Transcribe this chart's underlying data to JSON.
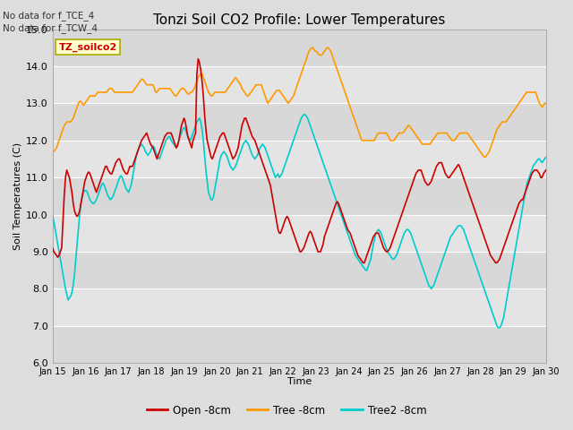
{
  "title": "Tonzi Soil CO2 Profile: Lower Temperatures",
  "ylabel": "Soil Temperatures (C)",
  "xlabel": "Time",
  "annotation1": "No data for f_TCE_4",
  "annotation2": "No data for f_TCW_4",
  "legend_label": "TZ_soilco2",
  "ylim": [
    6.0,
    15.0
  ],
  "yticks": [
    6.0,
    7.0,
    8.0,
    9.0,
    10.0,
    11.0,
    12.0,
    13.0,
    14.0,
    15.0
  ],
  "colors": {
    "open": "#cc0000",
    "tree": "#ff9900",
    "tree2": "#00cccc",
    "fig_bg": "#dddddd",
    "plot_bg_dark": "#d0d0d0",
    "plot_bg_light": "#e0e0e0"
  },
  "line_width": 1.2,
  "series_labels": [
    "Open -8cm",
    "Tree -8cm",
    "Tree2 -8cm"
  ],
  "xtick_labels": [
    "Jan 15",
    "Jan 16",
    "Jan 17",
    "Jan 18",
    "Jan 19",
    "Jan 20",
    "Jan 21",
    "Jan 22",
    "Jan 23",
    "Jan 24",
    "Jan 25",
    "Jan 26",
    "Jan 27",
    "Jan 28",
    "Jan 29",
    "Jan 30"
  ],
  "open_8cm": [
    9.1,
    9.0,
    8.95,
    8.9,
    8.85,
    8.9,
    9.0,
    9.1,
    9.8,
    10.5,
    11.0,
    11.2,
    11.1,
    11.0,
    10.8,
    10.6,
    10.3,
    10.1,
    10.0,
    9.95,
    10.0,
    10.1,
    10.3,
    10.5,
    10.7,
    10.9,
    11.0,
    11.1,
    11.15,
    11.1,
    11.0,
    10.9,
    10.8,
    10.7,
    10.6,
    10.7,
    10.8,
    10.9,
    11.0,
    11.1,
    11.2,
    11.3,
    11.3,
    11.2,
    11.15,
    11.1,
    11.1,
    11.2,
    11.3,
    11.4,
    11.45,
    11.5,
    11.5,
    11.4,
    11.3,
    11.2,
    11.15,
    11.1,
    11.1,
    11.2,
    11.3,
    11.3,
    11.3,
    11.4,
    11.5,
    11.6,
    11.7,
    11.8,
    11.9,
    12.0,
    12.05,
    12.1,
    12.15,
    12.2,
    12.1,
    12.0,
    11.9,
    11.85,
    11.8,
    11.7,
    11.6,
    11.5,
    11.6,
    11.7,
    11.8,
    11.9,
    12.0,
    12.1,
    12.15,
    12.2,
    12.2,
    12.2,
    12.2,
    12.1,
    12.0,
    11.9,
    11.8,
    11.85,
    12.0,
    12.2,
    12.4,
    12.5,
    12.6,
    12.5,
    12.3,
    12.1,
    12.0,
    11.9,
    11.8,
    12.0,
    12.1,
    12.2,
    13.8,
    14.2,
    14.1,
    13.9,
    13.6,
    13.2,
    12.7,
    12.3,
    12.0,
    11.85,
    11.7,
    11.55,
    11.5,
    11.6,
    11.7,
    11.8,
    11.9,
    12.0,
    12.1,
    12.15,
    12.2,
    12.2,
    12.1,
    12.0,
    11.9,
    11.8,
    11.7,
    11.6,
    11.5,
    11.55,
    11.6,
    11.7,
    11.8,
    12.0,
    12.2,
    12.4,
    12.5,
    12.6,
    12.6,
    12.5,
    12.4,
    12.3,
    12.2,
    12.1,
    12.05,
    12.0,
    11.9,
    11.8,
    11.7,
    11.6,
    11.5,
    11.4,
    11.3,
    11.2,
    11.1,
    11.0,
    10.9,
    10.8,
    10.6,
    10.4,
    10.2,
    10.0,
    9.8,
    9.6,
    9.5,
    9.5,
    9.6,
    9.7,
    9.8,
    9.9,
    9.95,
    9.9,
    9.8,
    9.7,
    9.6,
    9.5,
    9.4,
    9.3,
    9.2,
    9.1,
    9.0,
    9.0,
    9.05,
    9.1,
    9.2,
    9.3,
    9.4,
    9.5,
    9.55,
    9.5,
    9.4,
    9.3,
    9.2,
    9.1,
    9.0,
    9.0,
    9.0,
    9.1,
    9.2,
    9.4,
    9.5,
    9.6,
    9.7,
    9.8,
    9.9,
    10.0,
    10.1,
    10.2,
    10.3,
    10.35,
    10.3,
    10.2,
    10.1,
    10.0,
    9.9,
    9.8,
    9.7,
    9.6,
    9.55,
    9.5,
    9.4,
    9.3,
    9.2,
    9.1,
    9.0,
    8.9,
    8.85,
    8.8,
    8.75,
    8.7,
    8.7,
    8.8,
    8.9,
    9.0,
    9.1,
    9.2,
    9.3,
    9.4,
    9.45,
    9.5,
    9.5,
    9.5,
    9.4,
    9.3,
    9.2,
    9.1,
    9.05,
    9.0,
    9.0,
    9.05,
    9.1,
    9.2,
    9.3,
    9.4,
    9.5,
    9.6,
    9.7,
    9.8,
    9.9,
    10.0,
    10.1,
    10.2,
    10.3,
    10.4,
    10.5,
    10.6,
    10.7,
    10.8,
    10.9,
    11.0,
    11.1,
    11.15,
    11.2,
    11.2,
    11.2,
    11.1,
    11.0,
    10.9,
    10.85,
    10.8,
    10.8,
    10.85,
    10.9,
    11.0,
    11.1,
    11.2,
    11.3,
    11.35,
    11.4,
    11.4,
    11.4,
    11.3,
    11.2,
    11.1,
    11.05,
    11.0,
    11.0,
    11.05,
    11.1,
    11.15,
    11.2,
    11.25,
    11.3,
    11.35,
    11.3,
    11.2,
    11.1,
    11.0,
    10.9,
    10.8,
    10.7,
    10.6,
    10.5,
    10.4,
    10.3,
    10.2,
    10.1,
    10.0,
    9.9,
    9.8,
    9.7,
    9.6,
    9.5,
    9.4,
    9.3,
    9.2,
    9.1,
    9.0,
    8.9,
    8.85,
    8.8,
    8.75,
    8.7,
    8.7,
    8.75,
    8.8,
    8.9,
    9.0,
    9.1,
    9.2,
    9.3,
    9.4,
    9.5,
    9.6,
    9.7,
    9.8,
    9.9,
    10.0,
    10.1,
    10.2,
    10.3,
    10.35,
    10.4,
    10.4,
    10.5,
    10.6,
    10.7,
    10.8,
    10.9,
    11.0,
    11.1,
    11.15,
    11.2,
    11.2,
    11.2,
    11.15,
    11.1,
    11.0,
    11.0,
    11.1,
    11.15,
    11.2
  ],
  "tree_8cm": [
    11.7,
    11.7,
    11.75,
    11.8,
    11.9,
    12.0,
    12.1,
    12.2,
    12.3,
    12.4,
    12.45,
    12.5,
    12.5,
    12.5,
    12.5,
    12.55,
    12.6,
    12.7,
    12.8,
    12.9,
    13.0,
    13.05,
    13.05,
    13.0,
    12.95,
    13.0,
    13.05,
    13.1,
    13.15,
    13.2,
    13.2,
    13.2,
    13.2,
    13.2,
    13.25,
    13.3,
    13.3,
    13.3,
    13.3,
    13.3,
    13.3,
    13.3,
    13.3,
    13.35,
    13.4,
    13.4,
    13.4,
    13.35,
    13.3,
    13.3,
    13.3,
    13.3,
    13.3,
    13.3,
    13.3,
    13.3,
    13.3,
    13.3,
    13.3,
    13.3,
    13.3,
    13.3,
    13.3,
    13.35,
    13.4,
    13.45,
    13.5,
    13.55,
    13.6,
    13.65,
    13.65,
    13.6,
    13.55,
    13.5,
    13.5,
    13.5,
    13.5,
    13.5,
    13.5,
    13.4,
    13.3,
    13.3,
    13.35,
    13.4,
    13.4,
    13.4,
    13.4,
    13.4,
    13.4,
    13.4,
    13.4,
    13.4,
    13.35,
    13.3,
    13.25,
    13.2,
    13.2,
    13.25,
    13.3,
    13.35,
    13.4,
    13.4,
    13.4,
    13.35,
    13.3,
    13.25,
    13.25,
    13.3,
    13.3,
    13.35,
    13.4,
    13.5,
    13.6,
    13.7,
    13.75,
    13.8,
    13.8,
    13.7,
    13.6,
    13.5,
    13.4,
    13.3,
    13.25,
    13.2,
    13.2,
    13.25,
    13.3,
    13.3,
    13.3,
    13.3,
    13.3,
    13.3,
    13.3,
    13.3,
    13.3,
    13.35,
    13.4,
    13.45,
    13.5,
    13.55,
    13.6,
    13.65,
    13.7,
    13.65,
    13.6,
    13.55,
    13.5,
    13.4,
    13.35,
    13.3,
    13.25,
    13.2,
    13.2,
    13.25,
    13.3,
    13.35,
    13.4,
    13.45,
    13.5,
    13.5,
    13.5,
    13.5,
    13.5,
    13.4,
    13.3,
    13.2,
    13.1,
    13.0,
    13.05,
    13.1,
    13.15,
    13.2,
    13.25,
    13.3,
    13.35,
    13.35,
    13.35,
    13.3,
    13.25,
    13.2,
    13.15,
    13.1,
    13.05,
    13.0,
    13.05,
    13.1,
    13.15,
    13.2,
    13.3,
    13.4,
    13.5,
    13.6,
    13.7,
    13.8,
    13.9,
    14.0,
    14.1,
    14.2,
    14.3,
    14.4,
    14.45,
    14.5,
    14.5,
    14.45,
    14.4,
    14.4,
    14.35,
    14.3,
    14.3,
    14.3,
    14.35,
    14.4,
    14.45,
    14.5,
    14.5,
    14.45,
    14.4,
    14.3,
    14.2,
    14.1,
    14.0,
    13.9,
    13.8,
    13.7,
    13.6,
    13.5,
    13.4,
    13.3,
    13.2,
    13.1,
    13.0,
    12.9,
    12.8,
    12.7,
    12.6,
    12.5,
    12.4,
    12.3,
    12.2,
    12.1,
    12.0,
    12.0,
    12.0,
    12.0,
    12.0,
    12.0,
    12.0,
    12.0,
    12.0,
    12.0,
    12.0,
    12.1,
    12.15,
    12.2,
    12.2,
    12.2,
    12.2,
    12.2,
    12.2,
    12.2,
    12.15,
    12.1,
    12.0,
    12.0,
    12.0,
    12.0,
    12.05,
    12.1,
    12.15,
    12.2,
    12.2,
    12.2,
    12.2,
    12.25,
    12.3,
    12.35,
    12.4,
    12.4,
    12.35,
    12.3,
    12.25,
    12.2,
    12.15,
    12.1,
    12.05,
    12.0,
    11.95,
    11.9,
    11.9,
    11.9,
    11.9,
    11.9,
    11.9,
    11.9,
    11.95,
    12.0,
    12.05,
    12.1,
    12.15,
    12.2,
    12.2,
    12.2,
    12.2,
    12.2,
    12.2,
    12.2,
    12.2,
    12.15,
    12.1,
    12.05,
    12.0,
    12.0,
    12.0,
    12.05,
    12.1,
    12.15,
    12.2,
    12.2,
    12.2,
    12.2,
    12.2,
    12.2,
    12.2,
    12.15,
    12.1,
    12.05,
    12.0,
    11.95,
    11.9,
    11.85,
    11.8,
    11.75,
    11.7,
    11.65,
    11.6,
    11.55,
    11.55,
    11.6,
    11.65,
    11.7,
    11.8,
    11.9,
    12.0,
    12.1,
    12.2,
    12.3,
    12.35,
    12.4,
    12.45,
    12.5,
    12.5,
    12.5,
    12.5,
    12.55,
    12.6,
    12.65,
    12.7,
    12.75,
    12.8,
    12.85,
    12.9,
    12.95,
    13.0,
    13.05,
    13.1,
    13.15,
    13.2,
    13.25,
    13.3,
    13.3,
    13.3,
    13.3,
    13.3,
    13.3,
    13.3,
    13.3,
    13.2,
    13.1,
    13.0,
    12.95,
    12.9,
    12.95,
    13.0,
    13.0
  ],
  "tree2_8cm": [
    9.95,
    9.8,
    9.6,
    9.4,
    9.2,
    9.0,
    8.8,
    8.6,
    8.4,
    8.2,
    8.0,
    7.85,
    7.7,
    7.75,
    7.8,
    7.9,
    8.1,
    8.4,
    8.8,
    9.2,
    9.6,
    10.0,
    10.3,
    10.5,
    10.6,
    10.65,
    10.65,
    10.6,
    10.5,
    10.4,
    10.35,
    10.3,
    10.3,
    10.35,
    10.4,
    10.5,
    10.6,
    10.7,
    10.8,
    10.85,
    10.8,
    10.7,
    10.6,
    10.5,
    10.45,
    10.4,
    10.45,
    10.5,
    10.6,
    10.7,
    10.8,
    10.9,
    11.0,
    11.05,
    11.0,
    10.9,
    10.8,
    10.7,
    10.65,
    10.6,
    10.7,
    10.8,
    11.0,
    11.2,
    11.4,
    11.6,
    11.7,
    11.8,
    11.85,
    11.9,
    11.85,
    11.8,
    11.7,
    11.65,
    11.6,
    11.65,
    11.7,
    11.8,
    11.85,
    11.8,
    11.7,
    11.6,
    11.55,
    11.5,
    11.6,
    11.7,
    11.8,
    11.9,
    12.0,
    12.05,
    12.1,
    12.1,
    12.0,
    11.95,
    11.9,
    11.85,
    11.8,
    11.9,
    12.0,
    12.1,
    12.2,
    12.3,
    12.35,
    12.3,
    12.2,
    12.1,
    12.05,
    12.0,
    12.1,
    12.2,
    12.3,
    12.4,
    12.5,
    12.55,
    12.6,
    12.5,
    12.3,
    12.0,
    11.6,
    11.2,
    10.9,
    10.6,
    10.5,
    10.4,
    10.4,
    10.5,
    10.7,
    10.9,
    11.1,
    11.3,
    11.5,
    11.6,
    11.65,
    11.7,
    11.65,
    11.6,
    11.5,
    11.4,
    11.3,
    11.25,
    11.2,
    11.25,
    11.3,
    11.4,
    11.5,
    11.6,
    11.7,
    11.8,
    11.9,
    11.95,
    12.0,
    11.95,
    11.9,
    11.8,
    11.7,
    11.6,
    11.55,
    11.5,
    11.55,
    11.6,
    11.7,
    11.8,
    11.85,
    11.9,
    11.85,
    11.8,
    11.7,
    11.6,
    11.5,
    11.4,
    11.3,
    11.2,
    11.1,
    11.0,
    11.05,
    11.1,
    11.0,
    11.05,
    11.1,
    11.2,
    11.3,
    11.4,
    11.5,
    11.6,
    11.7,
    11.8,
    11.9,
    12.0,
    12.1,
    12.2,
    12.3,
    12.4,
    12.5,
    12.6,
    12.65,
    12.7,
    12.7,
    12.65,
    12.6,
    12.5,
    12.4,
    12.3,
    12.2,
    12.1,
    12.0,
    11.9,
    11.8,
    11.7,
    11.6,
    11.5,
    11.4,
    11.3,
    11.2,
    11.1,
    11.0,
    10.9,
    10.8,
    10.7,
    10.6,
    10.5,
    10.4,
    10.3,
    10.2,
    10.1,
    10.0,
    9.9,
    9.8,
    9.7,
    9.6,
    9.5,
    9.4,
    9.3,
    9.2,
    9.1,
    9.0,
    8.9,
    8.85,
    8.8,
    8.75,
    8.7,
    8.65,
    8.6,
    8.55,
    8.5,
    8.5,
    8.6,
    8.7,
    8.8,
    9.0,
    9.2,
    9.35,
    9.5,
    9.55,
    9.6,
    9.55,
    9.5,
    9.4,
    9.3,
    9.2,
    9.1,
    9.0,
    8.95,
    8.9,
    8.85,
    8.8,
    8.8,
    8.85,
    8.9,
    9.0,
    9.1,
    9.2,
    9.3,
    9.4,
    9.5,
    9.55,
    9.6,
    9.6,
    9.55,
    9.5,
    9.4,
    9.3,
    9.2,
    9.1,
    9.0,
    8.9,
    8.8,
    8.7,
    8.6,
    8.5,
    8.4,
    8.3,
    8.2,
    8.1,
    8.05,
    8.0,
    8.05,
    8.1,
    8.2,
    8.3,
    8.4,
    8.5,
    8.6,
    8.7,
    8.8,
    8.9,
    9.0,
    9.1,
    9.2,
    9.3,
    9.4,
    9.45,
    9.5,
    9.55,
    9.6,
    9.65,
    9.7,
    9.7,
    9.7,
    9.65,
    9.6,
    9.5,
    9.4,
    9.3,
    9.2,
    9.1,
    9.0,
    8.9,
    8.8,
    8.7,
    8.6,
    8.5,
    8.4,
    8.3,
    8.2,
    8.1,
    8.0,
    7.9,
    7.8,
    7.7,
    7.6,
    7.5,
    7.4,
    7.3,
    7.2,
    7.1,
    7.0,
    6.95,
    6.95,
    7.0,
    7.1,
    7.2,
    7.4,
    7.6,
    7.8,
    8.0,
    8.2,
    8.4,
    8.6,
    8.8,
    9.0,
    9.2,
    9.4,
    9.6,
    9.8,
    10.0,
    10.2,
    10.4,
    10.6,
    10.8,
    10.9,
    11.0,
    11.1,
    11.2,
    11.3,
    11.35,
    11.4,
    11.45,
    11.5,
    11.5,
    11.45,
    11.4,
    11.45,
    11.5,
    11.55
  ]
}
